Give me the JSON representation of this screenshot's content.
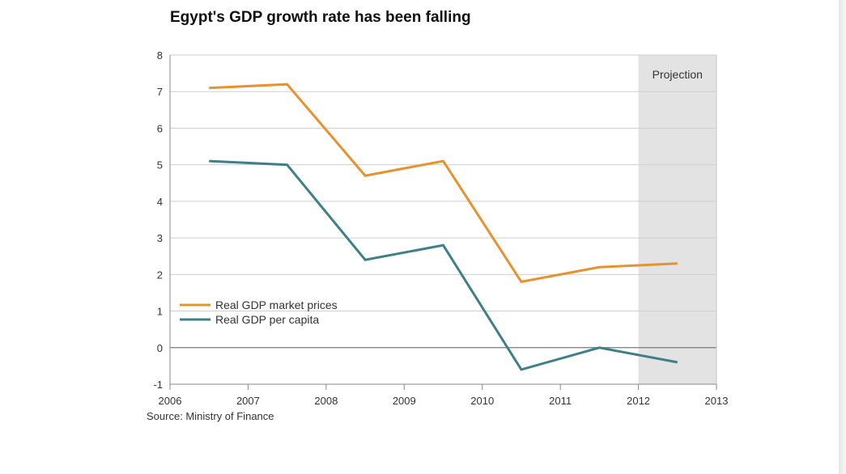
{
  "chart_data": {
    "type": "line",
    "title": "Egypt's GDP growth rate has been falling",
    "source": "Source: Ministry of Finance",
    "xlim": [
      2006,
      2013
    ],
    "ylim": [
      -1,
      8
    ],
    "x_ticks": [
      "2006",
      "2007",
      "2008",
      "2009",
      "2010",
      "2011",
      "2012",
      "2013"
    ],
    "y_ticks": [
      "8",
      "7",
      "6",
      "5",
      "4",
      "3",
      "2",
      "1",
      "0",
      "-1"
    ],
    "grid": true,
    "legend_position": "bottom-left",
    "projection_band": {
      "label": "Projection",
      "from": 2012,
      "to": 2013,
      "color": "#e3e3e3"
    },
    "series": [
      {
        "name": "Real GDP market prices",
        "color": "#e8912f",
        "x": [
          2006.5,
          2007.5,
          2008.5,
          2009.5,
          2010.5,
          2011.5,
          2012.5
        ],
        "values": [
          7.1,
          7.2,
          4.7,
          5.1,
          1.8,
          2.2,
          2.3
        ]
      },
      {
        "name": "Real GDP per capita",
        "color": "#3f7f88",
        "x": [
          2006.5,
          2007.5,
          2008.5,
          2009.5,
          2010.5,
          2011.5,
          2012.5
        ],
        "values": [
          5.1,
          5.0,
          2.4,
          2.8,
          -0.6,
          0.0,
          -0.4
        ]
      }
    ]
  }
}
